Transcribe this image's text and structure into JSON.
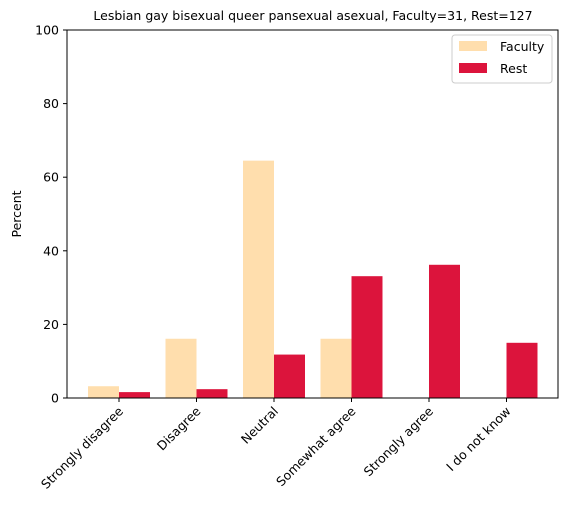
{
  "chart_data": {
    "type": "bar",
    "title": "Lesbian gay bisexual queer pansexual asexual, Faculty=31, Rest=127",
    "xlabel": "",
    "ylabel": "Percent",
    "ylim": [
      0,
      100
    ],
    "yticks": [
      "0",
      "20",
      "40",
      "60",
      "80",
      "100"
    ],
    "categories": [
      "Strongly disagree",
      "Disagree",
      "Neutral",
      "Somewhat agree",
      "Strongly agree",
      "I do not know"
    ],
    "series": [
      {
        "name": "Faculty",
        "color": "#ffdead",
        "values": [
          3.2,
          16.1,
          64.5,
          16.1,
          0,
          0
        ]
      },
      {
        "name": "Rest",
        "color": "#dc143c",
        "values": [
          1.6,
          2.4,
          11.8,
          33.1,
          36.2,
          15.0
        ]
      }
    ],
    "legend_position": "top-right",
    "grid": false
  }
}
